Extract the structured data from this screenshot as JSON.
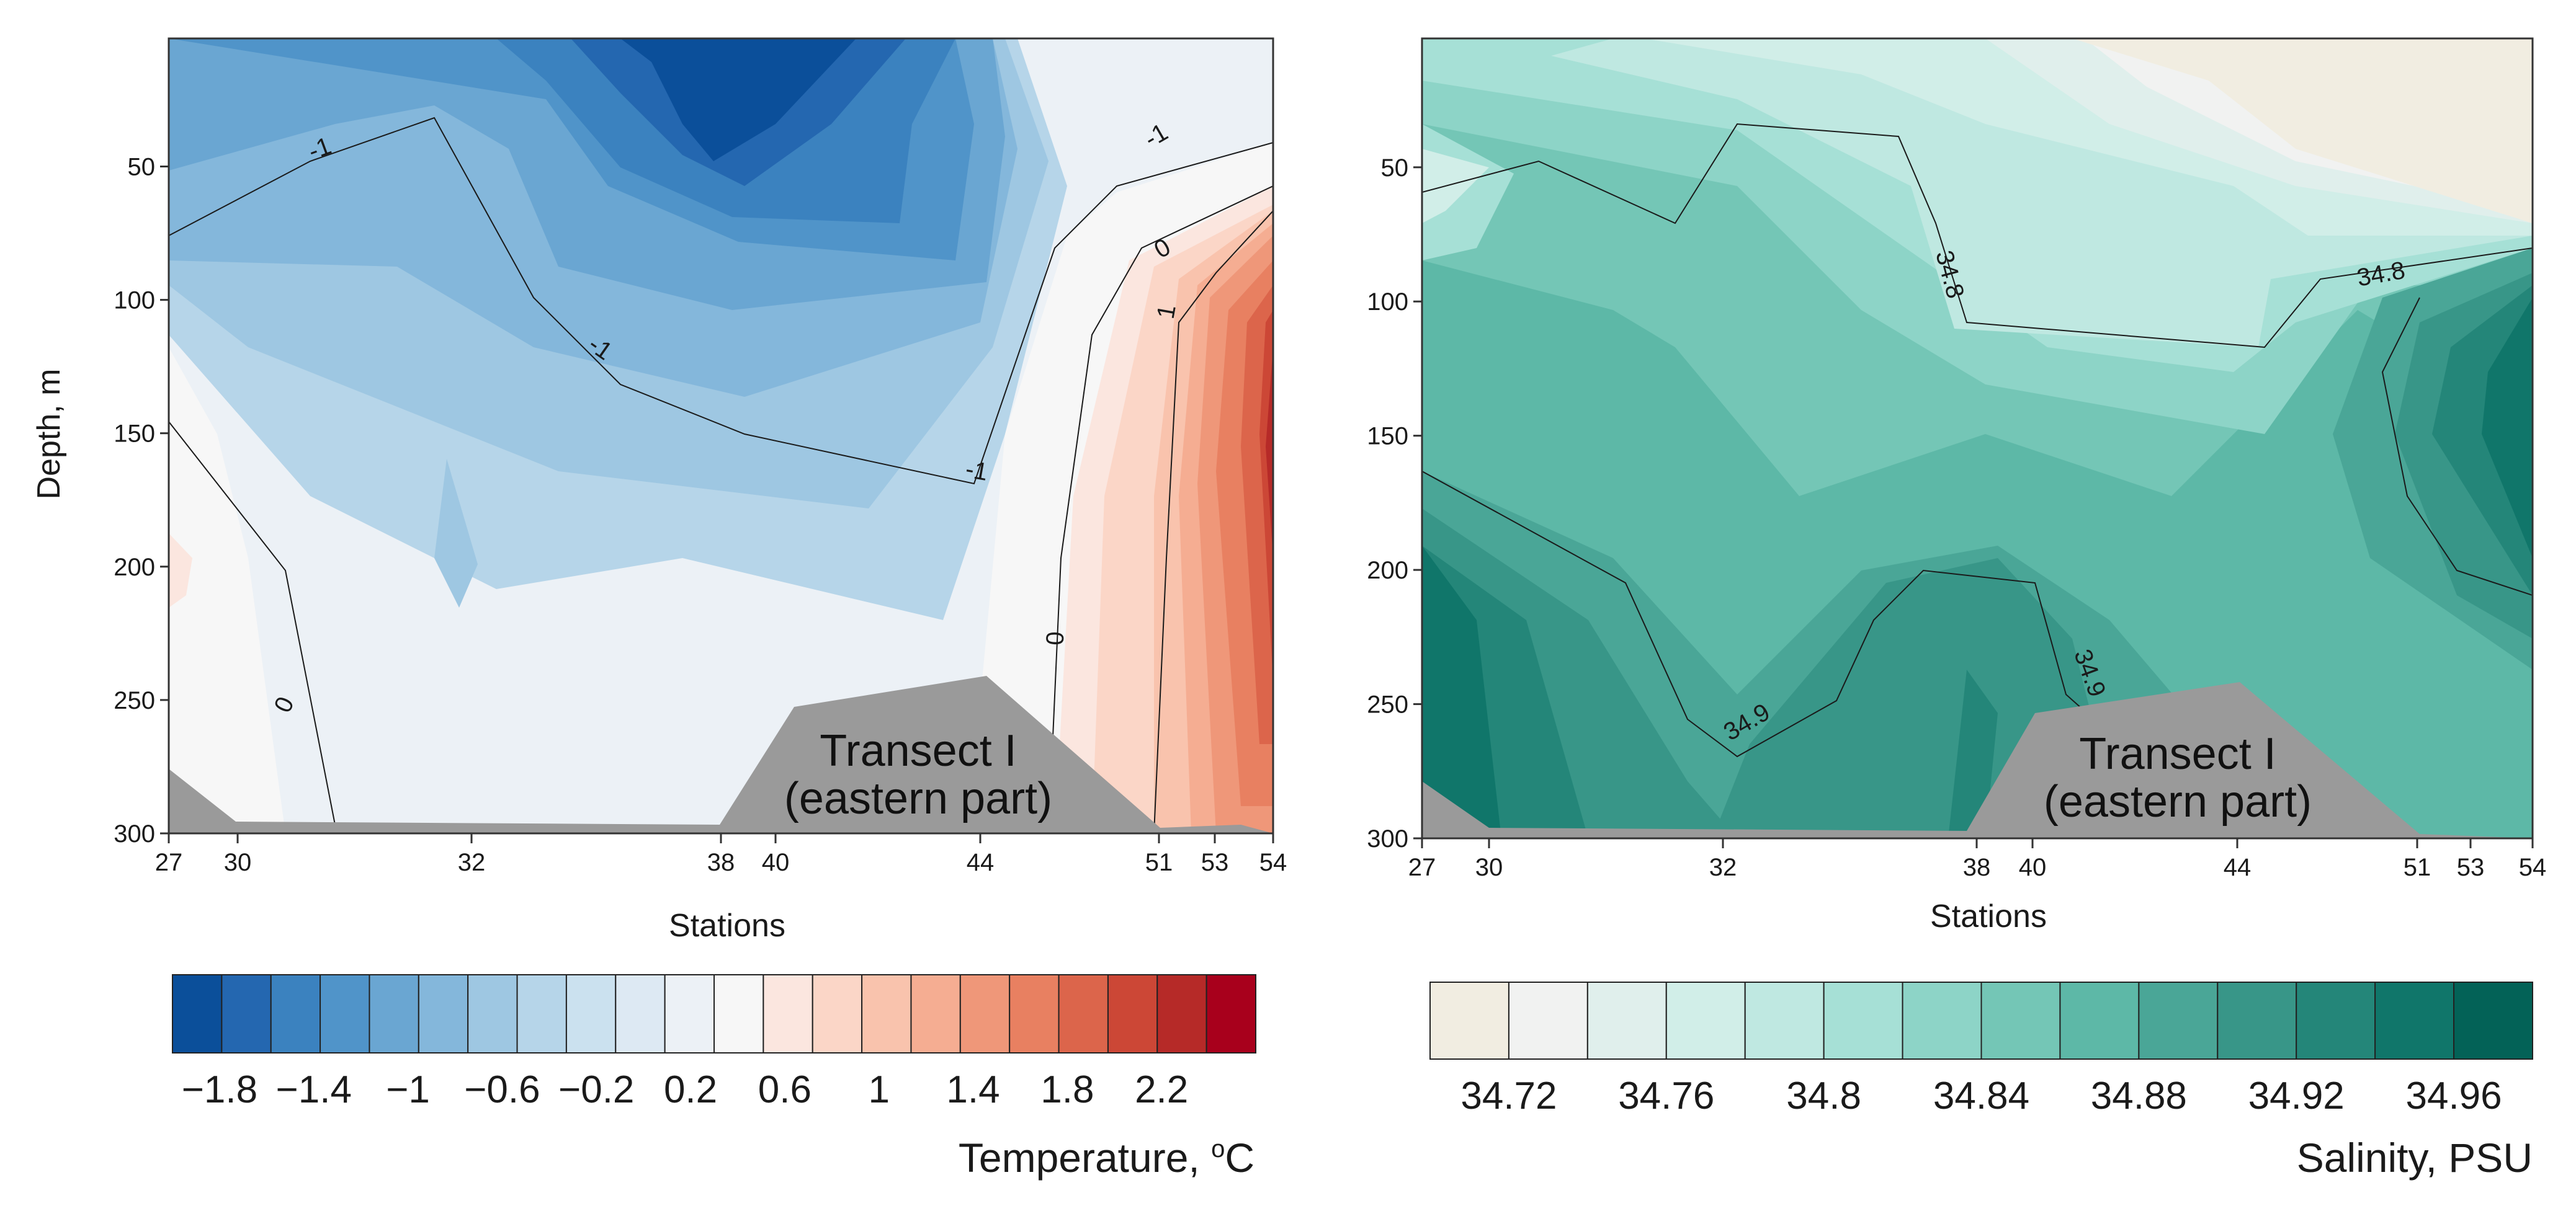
{
  "chart_data": [
    {
      "type": "heatmap",
      "variant": "filled-contour-section",
      "ylabel": "Depth, m",
      "xlabel": "Stations",
      "colorbar_title": "Temperature, °C",
      "colorbar_title_base": "Temperature, ",
      "colorbar_title_sup": "o",
      "colorbar_title_unit": "C",
      "bottom_label": [
        "Transect I",
        "(eastern part)"
      ],
      "x_ticks": [
        "27",
        "30",
        "32",
        "38",
        "40",
        "44",
        "51",
        "53",
        "54"
      ],
      "y_ticks": [
        50,
        100,
        150,
        200,
        250,
        300
      ],
      "ylim": [
        300,
        2
      ],
      "y_inverted": true,
      "colorbar_ticks": [
        "−1.8",
        "−1.4",
        "−1",
        "−0.6",
        "−0.2",
        "0.2",
        "0.6",
        "1",
        "1.4",
        "1.8",
        "2.2"
      ],
      "colorbar_range": [
        -2.0,
        2.6
      ],
      "colorbar_step": 0.2,
      "colormap": [
        "#0b4f9a",
        "#2467b0",
        "#3b82bf",
        "#5094c9",
        "#6aa6d2",
        "#84b7db",
        "#9ec7e2",
        "#b6d5e9",
        "#cbe1ef",
        "#dde9f3",
        "#ecf1f6",
        "#f7f7f7",
        "#fbe6df",
        "#fbd6c7",
        "#f9c3ad",
        "#f5ad92",
        "#ef9779",
        "#e88061",
        "#dc654b",
        "#cc4736",
        "#b62a28",
        "#a8001c"
      ],
      "contour_labels": [
        "-1",
        "-1",
        "-1",
        "-1",
        "0",
        "0",
        "0",
        "1"
      ],
      "bathymetry_color": "#9a9a9a"
    },
    {
      "type": "heatmap",
      "variant": "filled-contour-section",
      "xlabel": "Stations",
      "colorbar_title": "Salinity, PSU",
      "bottom_label": [
        "Transect I",
        "(eastern part)"
      ],
      "x_ticks": [
        "27",
        "30",
        "32",
        "38",
        "40",
        "44",
        "51",
        "53",
        "54"
      ],
      "y_ticks": [
        50,
        100,
        150,
        200,
        250,
        300
      ],
      "ylim": [
        300,
        2
      ],
      "y_inverted": true,
      "colorbar_ticks": [
        "34.72",
        "34.76",
        "34.8",
        "34.84",
        "34.88",
        "34.92",
        "34.96"
      ],
      "colorbar_range": [
        34.7,
        34.98
      ],
      "colorbar_step": 0.02,
      "colormap": [
        "#f1ede1",
        "#f1f2f1",
        "#e0efec",
        "#d1eee8",
        "#bfe8e1",
        "#a6e0d6",
        "#8dd4c7",
        "#74c6b6",
        "#5db8a7",
        "#4aa697",
        "#389688",
        "#248679",
        "#10766a",
        "#036257"
      ],
      "contour_labels": [
        "34.8",
        "34.8",
        "34.9",
        "34.9"
      ],
      "bathymetry_color": "#9a9a9a"
    }
  ]
}
